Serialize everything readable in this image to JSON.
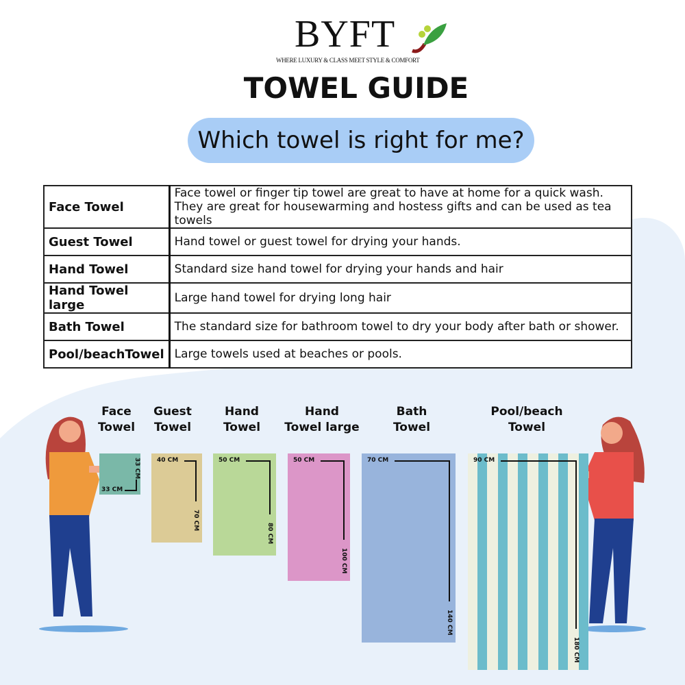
{
  "brand": {
    "name": "BYFT",
    "tagline": "WHERE LUXURY & CLASS MEET STYLE & COMFORT"
  },
  "title": "TOWEL GUIDE",
  "subtitle": "Which towel is right for me?",
  "table": [
    {
      "name": "Face Towel",
      "desc": "Face towel or finger tip towel are great to have at home for a quick wash.\nThey are great for housewarming and hostess gifts and can be used as tea towels"
    },
    {
      "name": "Guest Towel",
      "desc": "Hand towel or guest towel for drying your hands."
    },
    {
      "name": "Hand Towel",
      "desc": "Standard size hand towel for drying your hands and hair"
    },
    {
      "name": "Hand Towel large",
      "desc": "Large hand towel for drying long hair"
    },
    {
      "name": "Bath Towel",
      "desc": "The standard size for bathroom towel to dry your body after bath or shower."
    },
    {
      "name": "Pool/beachTowel",
      "desc": "Large towels used at beaches or pools."
    }
  ],
  "towels": [
    {
      "label1": "Face",
      "label2": "Towel",
      "width": "33 CM",
      "length": "33 CM",
      "color": "#7ab8a8"
    },
    {
      "label1": "Guest",
      "label2": "Towel",
      "width": "40 CM",
      "length": "70 CM",
      "color": "#dccb96"
    },
    {
      "label1": "Hand",
      "label2": "Towel",
      "width": "50 CM",
      "length": "80 CM",
      "color": "#b9d898"
    },
    {
      "label1": "Hand",
      "label2": "Towel large",
      "width": "50 CM",
      "length": "100 CM",
      "color": "#dc96c8"
    },
    {
      "label1": "Bath",
      "label2": "Towel",
      "width": "70 CM",
      "length": "140 CM",
      "color": "#98b4dc"
    },
    {
      "label1": "Pool/beach",
      "label2": "Towel",
      "width": "90 CM",
      "length": "180 CM",
      "color": "#6cbccb"
    }
  ]
}
